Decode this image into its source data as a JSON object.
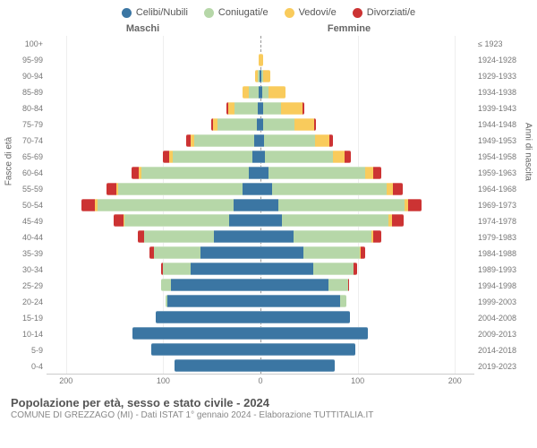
{
  "legend": [
    {
      "label": "Celibi/Nubili",
      "color": "#3b76a3"
    },
    {
      "label": "Coniugati/e",
      "color": "#b6d7a8"
    },
    {
      "label": "Vedovi/e",
      "color": "#f9cb5c"
    },
    {
      "label": "Divorziati/e",
      "color": "#cc3333"
    }
  ],
  "gender_labels": {
    "male": "Maschi",
    "female": "Femmine"
  },
  "axis_titles": {
    "left": "Fasce di età",
    "right": "Anni di nascita"
  },
  "x_axis": {
    "max": 220,
    "ticks": [
      200,
      100,
      0,
      100,
      200
    ]
  },
  "colors": {
    "celibi": "#3b76a3",
    "coniugati": "#b6d7a8",
    "vedovi": "#f9cb5c",
    "divorziati": "#cc3333",
    "grid": "#eeeeee",
    "center": "#999999"
  },
  "footer": {
    "title": "Popolazione per età, sesso e stato civile - 2024",
    "subtitle": "COMUNE DI GREZZAGO (MI) - Dati ISTAT 1° gennaio 2024 - Elaborazione TUTTITALIA.IT"
  },
  "rows": [
    {
      "age": "100+",
      "year": "≤ 1923",
      "m": {
        "cel": 0,
        "con": 0,
        "ved": 0,
        "div": 0
      },
      "f": {
        "cel": 0,
        "con": 0,
        "ved": 0,
        "div": 0
      }
    },
    {
      "age": "95-99",
      "year": "1924-1928",
      "m": {
        "cel": 0,
        "con": 0,
        "ved": 2,
        "div": 0
      },
      "f": {
        "cel": 0,
        "con": 0,
        "ved": 3,
        "div": 0
      }
    },
    {
      "age": "90-94",
      "year": "1929-1933",
      "m": {
        "cel": 1,
        "con": 2,
        "ved": 3,
        "div": 0
      },
      "f": {
        "cel": 1,
        "con": 2,
        "ved": 7,
        "div": 0
      }
    },
    {
      "age": "85-89",
      "year": "1934-1938",
      "m": {
        "cel": 2,
        "con": 10,
        "ved": 6,
        "div": 0
      },
      "f": {
        "cel": 2,
        "con": 6,
        "ved": 18,
        "div": 0
      }
    },
    {
      "age": "80-84",
      "year": "1939-1943",
      "m": {
        "cel": 3,
        "con": 24,
        "ved": 6,
        "div": 2
      },
      "f": {
        "cel": 3,
        "con": 18,
        "ved": 22,
        "div": 2
      }
    },
    {
      "age": "75-79",
      "year": "1944-1948",
      "m": {
        "cel": 4,
        "con": 40,
        "ved": 5,
        "div": 2
      },
      "f": {
        "cel": 3,
        "con": 32,
        "ved": 20,
        "div": 2
      }
    },
    {
      "age": "70-74",
      "year": "1949-1953",
      "m": {
        "cel": 6,
        "con": 62,
        "ved": 4,
        "div": 4
      },
      "f": {
        "cel": 4,
        "con": 52,
        "ved": 15,
        "div": 4
      }
    },
    {
      "age": "65-69",
      "year": "1954-1958",
      "m": {
        "cel": 8,
        "con": 82,
        "ved": 4,
        "div": 6
      },
      "f": {
        "cel": 5,
        "con": 70,
        "ved": 12,
        "div": 6
      }
    },
    {
      "age": "60-64",
      "year": "1959-1963",
      "m": {
        "cel": 12,
        "con": 110,
        "ved": 3,
        "div": 8
      },
      "f": {
        "cel": 8,
        "con": 100,
        "ved": 8,
        "div": 8
      }
    },
    {
      "age": "55-59",
      "year": "1964-1968",
      "m": {
        "cel": 18,
        "con": 128,
        "ved": 2,
        "div": 10
      },
      "f": {
        "cel": 12,
        "con": 118,
        "ved": 6,
        "div": 10
      }
    },
    {
      "age": "50-54",
      "year": "1969-1973",
      "m": {
        "cel": 28,
        "con": 140,
        "ved": 2,
        "div": 14
      },
      "f": {
        "cel": 18,
        "con": 130,
        "ved": 4,
        "div": 14
      }
    },
    {
      "age": "45-49",
      "year": "1974-1978",
      "m": {
        "cel": 32,
        "con": 108,
        "ved": 1,
        "div": 10
      },
      "f": {
        "cel": 22,
        "con": 110,
        "ved": 3,
        "div": 12
      }
    },
    {
      "age": "40-44",
      "year": "1979-1983",
      "m": {
        "cel": 48,
        "con": 72,
        "ved": 0,
        "div": 6
      },
      "f": {
        "cel": 34,
        "con": 80,
        "ved": 2,
        "div": 8
      }
    },
    {
      "age": "35-39",
      "year": "1984-1988",
      "m": {
        "cel": 62,
        "con": 48,
        "ved": 0,
        "div": 4
      },
      "f": {
        "cel": 44,
        "con": 58,
        "ved": 1,
        "div": 5
      }
    },
    {
      "age": "30-34",
      "year": "1989-1993",
      "m": {
        "cel": 72,
        "con": 28,
        "ved": 0,
        "div": 2
      },
      "f": {
        "cel": 54,
        "con": 42,
        "ved": 0,
        "div": 3
      }
    },
    {
      "age": "25-29",
      "year": "1994-1998",
      "m": {
        "cel": 92,
        "con": 10,
        "ved": 0,
        "div": 0
      },
      "f": {
        "cel": 70,
        "con": 20,
        "ved": 0,
        "div": 1
      }
    },
    {
      "age": "20-24",
      "year": "1999-2003",
      "m": {
        "cel": 96,
        "con": 2,
        "ved": 0,
        "div": 0
      },
      "f": {
        "cel": 82,
        "con": 6,
        "ved": 0,
        "div": 0
      }
    },
    {
      "age": "15-19",
      "year": "2004-2008",
      "m": {
        "cel": 108,
        "con": 0,
        "ved": 0,
        "div": 0
      },
      "f": {
        "cel": 92,
        "con": 0,
        "ved": 0,
        "div": 0
      }
    },
    {
      "age": "10-14",
      "year": "2009-2013",
      "m": {
        "cel": 132,
        "con": 0,
        "ved": 0,
        "div": 0
      },
      "f": {
        "cel": 110,
        "con": 0,
        "ved": 0,
        "div": 0
      }
    },
    {
      "age": "5-9",
      "year": "2014-2018",
      "m": {
        "cel": 112,
        "con": 0,
        "ved": 0,
        "div": 0
      },
      "f": {
        "cel": 98,
        "con": 0,
        "ved": 0,
        "div": 0
      }
    },
    {
      "age": "0-4",
      "year": "2019-2023",
      "m": {
        "cel": 88,
        "con": 0,
        "ved": 0,
        "div": 0
      },
      "f": {
        "cel": 76,
        "con": 0,
        "ved": 0,
        "div": 0
      }
    }
  ]
}
